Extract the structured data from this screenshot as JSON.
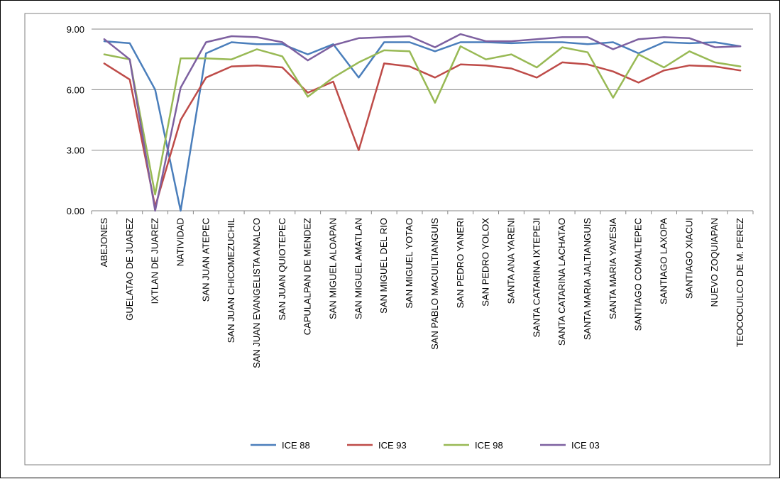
{
  "chart_data": {
    "type": "line",
    "categories": [
      "ABEJONES",
      "GUELATAO DE JUAREZ",
      "IXTLAN DE JUAREZ",
      "NATIVIDAD",
      "SAN JUAN ATEPEC",
      "SAN JUAN CHICOMEZUCHIL",
      "SAN JUAN EVANGELISTA ANALCO",
      "SAN JUAN QUIOTEPEC",
      "CAPULALPAN DE MENDEZ",
      "SAN MIGUEL ALOAPAN",
      "SAN MIGUEL AMATLAN",
      "SAN MIGUEL DEL RIO",
      "SAN MIGUEL YOTAO",
      "SAN PABLO MACUILTIANGUIS",
      "SAN PEDRO YANERI",
      "SAN PEDRO YOLOX",
      "SANTA ANA YARENI",
      "SANTA CATARINA IXTEPEJI",
      "SANTA CATARINA LACHATAO",
      "SANTA MARIA JALTIANGUIS",
      "SANTA MARIA YAVESIA",
      "SANTIAGO COMALTEPEC",
      "SANTIAGO LAXOPA",
      "SANTIAGO XIACUI",
      "NUEVO ZOQUIAPAN",
      "TEOCOCUILCO DE M. PEREZ"
    ],
    "series": [
      {
        "name": "ICE 88",
        "color": "#4a7ebb",
        "values": [
          8.4,
          8.3,
          6.0,
          0.0,
          7.8,
          8.35,
          8.25,
          8.25,
          7.75,
          8.25,
          6.6,
          8.35,
          8.35,
          7.9,
          8.35,
          8.35,
          8.3,
          8.35,
          8.35,
          8.25,
          8.35,
          7.8,
          8.35,
          8.3,
          8.35,
          8.15
        ]
      },
      {
        "name": "ICE 93",
        "color": "#be4b48",
        "values": [
          7.3,
          6.5,
          0.2,
          4.5,
          6.6,
          7.15,
          7.2,
          7.1,
          5.85,
          6.4,
          3.0,
          7.3,
          7.15,
          6.6,
          7.25,
          7.2,
          7.05,
          6.6,
          7.35,
          7.25,
          6.9,
          6.35,
          6.95,
          7.2,
          7.15,
          6.95
        ]
      },
      {
        "name": "ICE 98",
        "color": "#98b954",
        "values": [
          7.75,
          7.5,
          0.8,
          7.55,
          7.55,
          7.5,
          8.0,
          7.65,
          5.65,
          6.6,
          7.35,
          7.95,
          7.9,
          5.35,
          8.15,
          7.5,
          7.75,
          7.1,
          8.1,
          7.85,
          5.6,
          7.75,
          7.1,
          7.9,
          7.35,
          7.15
        ]
      },
      {
        "name": "ICE 03",
        "color": "#7d60a0",
        "values": [
          8.5,
          7.5,
          0.0,
          6.1,
          8.35,
          8.65,
          8.6,
          8.35,
          7.45,
          8.2,
          8.55,
          8.6,
          8.65,
          8.1,
          8.75,
          8.4,
          8.4,
          8.5,
          8.6,
          8.6,
          8.0,
          8.5,
          8.6,
          8.55,
          8.1,
          8.15
        ]
      }
    ],
    "ylim": [
      0,
      9
    ],
    "yticks": [
      "0.00",
      "3.00",
      "6.00",
      "9.00"
    ],
    "title": "",
    "xlabel": "",
    "ylabel": "",
    "grid": "horizontal",
    "legend_position": "bottom"
  }
}
